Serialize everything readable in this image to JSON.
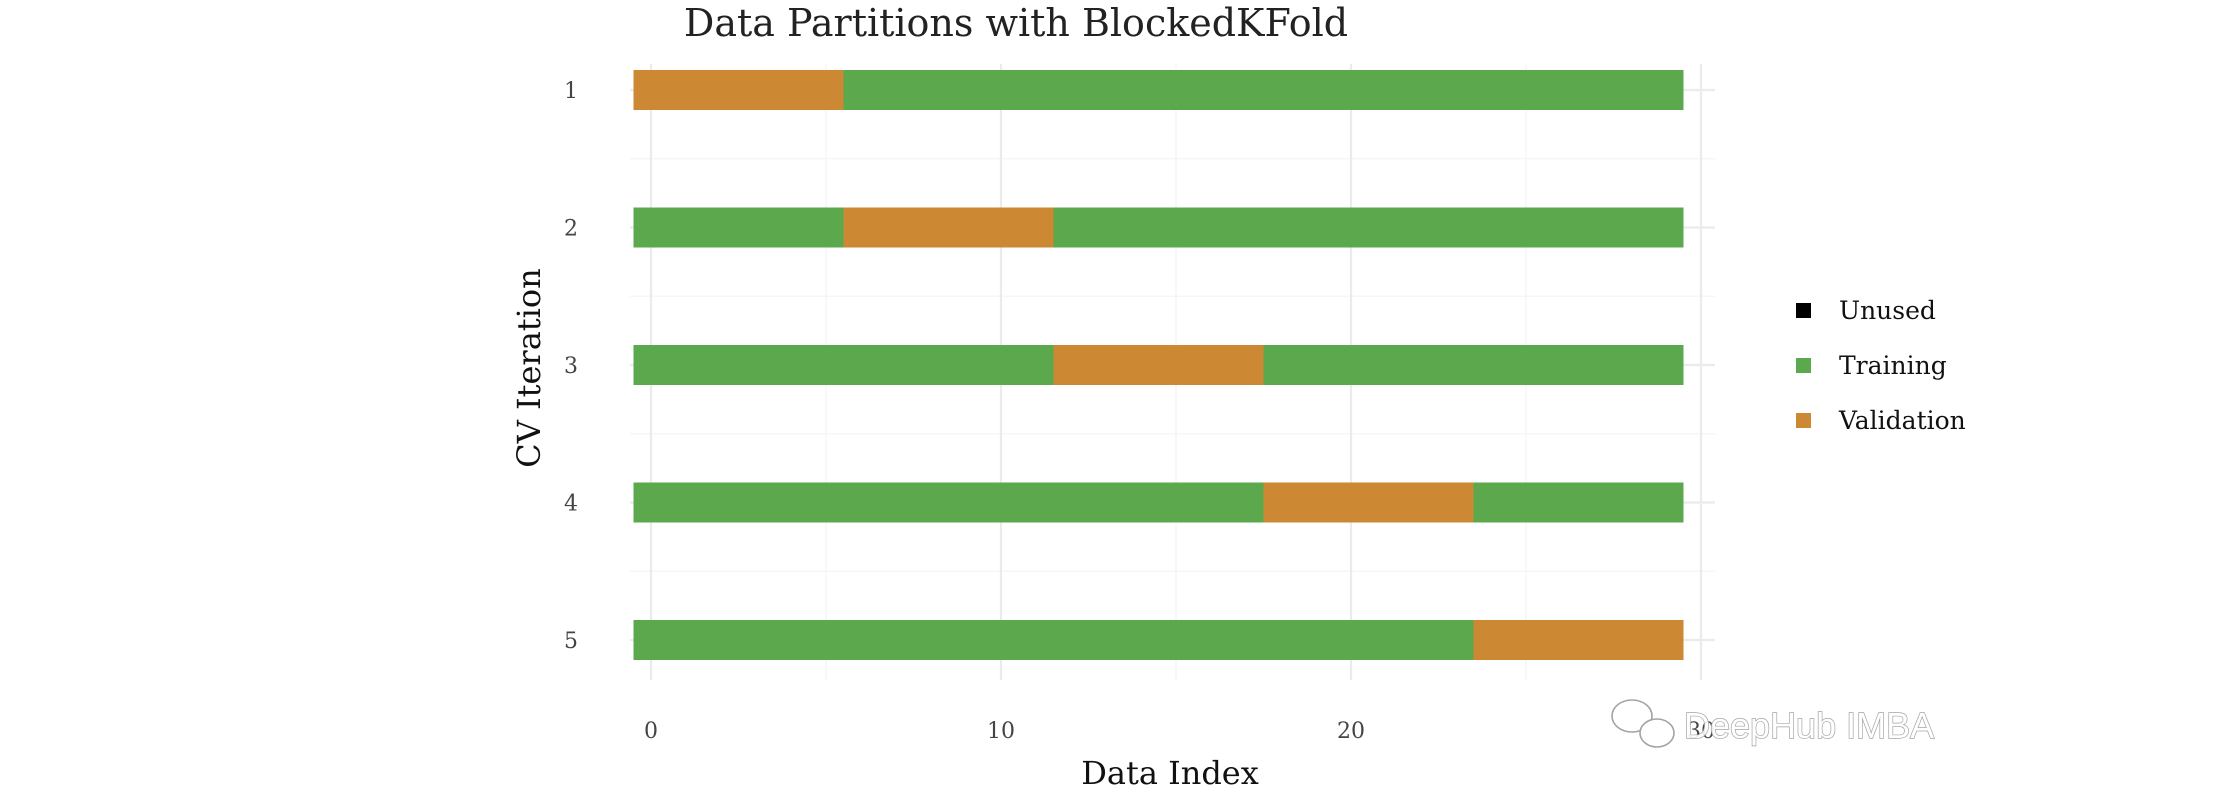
{
  "chart_data": {
    "type": "bar",
    "orientation": "horizontal",
    "stacked": true,
    "title": "Data Partitions with BlockedKFold",
    "xlabel": "Data Index",
    "ylabel": "CV Iteration",
    "xlim": [
      -0.6,
      30.4
    ],
    "x_ticks": [
      "0",
      "10",
      "20",
      "30"
    ],
    "categories": [
      "1",
      "2",
      "3",
      "4",
      "5"
    ],
    "grid": true,
    "legend_position": "right",
    "legend": [
      {
        "label": "Unused",
        "color": "#000000"
      },
      {
        "label": "Training",
        "color": "#5ba94c"
      },
      {
        "label": "Validation",
        "color": "#cd8834"
      }
    ],
    "series": [
      {
        "name": "Training",
        "color": "#5ba94c",
        "segments": [
          [
            [
              6,
              30
            ]
          ],
          [
            [
              0,
              6
            ],
            [
              12,
              30
            ]
          ],
          [
            [
              0,
              12
            ],
            [
              18,
              30
            ]
          ],
          [
            [
              0,
              18
            ],
            [
              24,
              30
            ]
          ],
          [
            [
              0,
              24
            ]
          ]
        ]
      },
      {
        "name": "Validation",
        "color": "#cd8834",
        "segments": [
          [
            [
              0,
              6
            ]
          ],
          [
            [
              6,
              12
            ]
          ],
          [
            [
              12,
              18
            ]
          ],
          [
            [
              18,
              24
            ]
          ],
          [
            [
              24,
              30
            ]
          ]
        ]
      }
    ]
  },
  "watermark": {
    "text": "DeepHub IMBA",
    "icon": "wechat-icon"
  }
}
